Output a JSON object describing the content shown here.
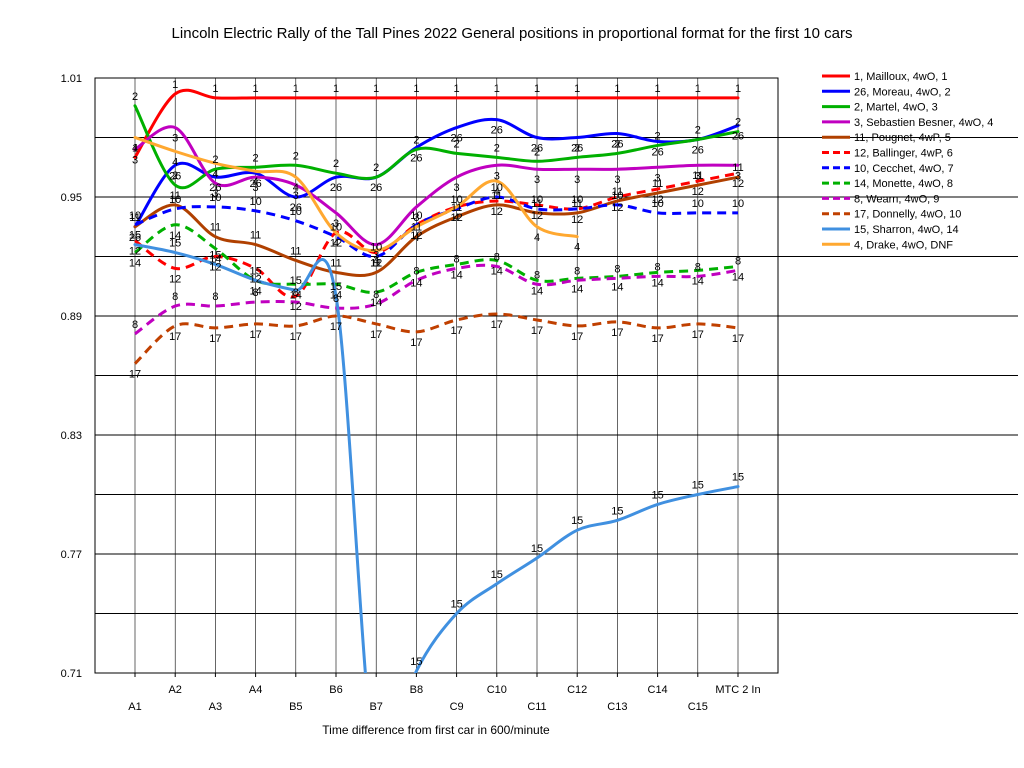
{
  "chart_data": {
    "type": "line",
    "title": "Lincoln Electric Rally of the Tall Pines 2022  General positions in proportional format for the first 10 cars",
    "xlabel": "Time difference from first car in 600/minute",
    "ylabel": "",
    "ylim": [
      0.71,
      1.01
    ],
    "y_ticks": [
      "1.01",
      "0.95",
      "0.89",
      "0.83",
      "0.77",
      "0.71"
    ],
    "grid": "horizontal",
    "legend_position": "right",
    "categories": [
      "A1",
      "A2",
      "A3",
      "A4",
      "B5",
      "B6",
      "B7",
      "B8",
      "C9",
      "C10",
      "C11",
      "C12",
      "C13",
      "C14",
      "C15",
      "MTC 2 In"
    ],
    "series": [
      {
        "name": "1, Mailloux, 4wO, 1",
        "label": "1",
        "color": "#ff0000",
        "dash": false,
        "values": [
          0.97,
          1.002,
          1.0,
          1.0,
          1.0,
          1.0,
          1.0,
          1.0,
          1.0,
          1.0,
          1.0,
          1.0,
          1.0,
          1.0,
          1.0,
          1.0
        ]
      },
      {
        "name": "26, Moreau, 4wO, 2",
        "label": "26",
        "color": "#0000ff",
        "dash": false,
        "values": [
          0.935,
          0.966,
          0.96,
          0.962,
          0.95,
          0.96,
          0.96,
          0.975,
          0.985,
          0.989,
          0.98,
          0.98,
          0.982,
          0.978,
          0.979,
          0.986
        ]
      },
      {
        "name": "2, Martel, 4wO, 3",
        "label": "2",
        "color": "#00b000",
        "dash": false,
        "values": [
          0.996,
          0.956,
          0.964,
          0.965,
          0.966,
          0.962,
          0.96,
          0.974,
          0.972,
          0.97,
          0.968,
          0.97,
          0.972,
          0.976,
          0.979,
          0.983
        ]
      },
      {
        "name": "3, Sebastien Besner, 4wO, 4",
        "label": "3",
        "color": "#c000c0",
        "dash": false,
        "values": [
          0.974,
          0.985,
          0.957,
          0.96,
          0.956,
          0.942,
          0.926,
          0.945,
          0.96,
          0.966,
          0.964,
          0.964,
          0.964,
          0.965,
          0.966,
          0.966
        ]
      },
      {
        "name": "11, Pougnet, 4wP, 5",
        "label": "11",
        "color": "#b04000",
        "dash": false,
        "values": [
          0.935,
          0.946,
          0.93,
          0.926,
          0.918,
          0.912,
          0.912,
          0.93,
          0.94,
          0.946,
          0.942,
          0.942,
          0.948,
          0.952,
          0.956,
          0.96
        ]
      },
      {
        "name": "12, Ballinger, 4wP, 6",
        "label": "12",
        "color": "#ff0000",
        "dash": true,
        "values": [
          0.928,
          0.914,
          0.92,
          0.914,
          0.9,
          0.932,
          0.922,
          0.936,
          0.945,
          0.948,
          0.946,
          0.944,
          0.95,
          0.954,
          0.958,
          0.962
        ]
      },
      {
        "name": "10, Cecchet, 4wO, 7",
        "label": "10",
        "color": "#0000ff",
        "dash": true,
        "values": [
          0.936,
          0.944,
          0.945,
          0.943,
          0.938,
          0.93,
          0.92,
          0.936,
          0.944,
          0.95,
          0.944,
          0.944,
          0.946,
          0.942,
          0.942,
          0.942
        ]
      },
      {
        "name": "14, Monette, 4wO, 8",
        "label": "14",
        "color": "#00b000",
        "dash": true,
        "values": [
          0.922,
          0.936,
          0.924,
          0.908,
          0.906,
          0.906,
          0.902,
          0.912,
          0.916,
          0.918,
          0.908,
          0.909,
          0.91,
          0.912,
          0.913,
          0.915
        ]
      },
      {
        "name": "8, Wearn, 4wO, 9",
        "label": "8",
        "color": "#c000c0",
        "dash": true,
        "values": [
          0.881,
          0.895,
          0.895,
          0.897,
          0.897,
          0.894,
          0.896,
          0.908,
          0.914,
          0.915,
          0.906,
          0.908,
          0.909,
          0.91,
          0.91,
          0.913
        ]
      },
      {
        "name": "17, Donnelly, 4wO, 10",
        "label": "17",
        "color": "#c04000",
        "dash": true,
        "values": [
          0.866,
          0.885,
          0.884,
          0.886,
          0.885,
          0.89,
          0.886,
          0.882,
          0.888,
          0.891,
          0.888,
          0.885,
          0.887,
          0.884,
          0.886,
          0.884
        ]
      },
      {
        "name": "15, Sharron, 4wO, 14",
        "label": "15",
        "color": "#4090e0",
        "dash": false,
        "values": [
          0.926,
          0.922,
          0.916,
          0.908,
          0.903,
          0.9,
          0.66,
          0.711,
          0.74,
          0.755,
          0.768,
          0.782,
          0.787,
          0.795,
          0.8,
          0.804
        ]
      },
      {
        "name": "4, Drake, 4wO, DNF",
        "label": "4",
        "color": "#ffa830",
        "dash": false,
        "values": [
          0.98,
          0.973,
          0.967,
          0.963,
          0.96,
          0.932,
          0.923,
          0.935,
          0.945,
          0.958,
          0.935,
          0.93,
          null,
          null,
          null,
          null
        ]
      }
    ]
  }
}
